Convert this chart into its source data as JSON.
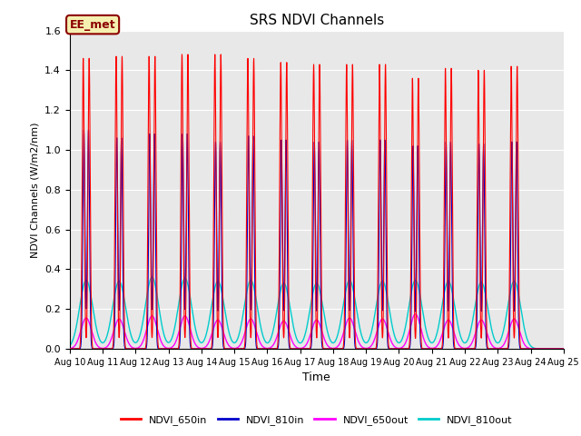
{
  "title": "SRS NDVI Channels",
  "xlabel": "Time",
  "ylabel": "NDVI Channels (W/m2/nm)",
  "ylim": [
    0.0,
    1.6
  ],
  "yticks": [
    0.0,
    0.2,
    0.4,
    0.6,
    0.8,
    1.0,
    1.2,
    1.4,
    1.6
  ],
  "x_tick_labels": [
    "Aug 10",
    "Aug 11",
    "Aug 12",
    "Aug 13",
    "Aug 14",
    "Aug 15",
    "Aug 16",
    "Aug 17",
    "Aug 18",
    "Aug 19",
    "Aug 20",
    "Aug 21",
    "Aug 22",
    "Aug 23",
    "Aug 24",
    "Aug 25"
  ],
  "background_color": "#e8e8e8",
  "annotation_text": "EE_met",
  "annotation_bg": "#f5f0b0",
  "annotation_border": "#8b0000",
  "line_colors": {
    "NDVI_650in": "#ff0000",
    "NDVI_810in": "#0000cc",
    "NDVI_650out": "#ff00ff",
    "NDVI_810out": "#00cccc"
  },
  "peak_650in": [
    1.46,
    1.47,
    1.47,
    1.48,
    1.48,
    1.46,
    1.44,
    1.43,
    1.43,
    1.43,
    1.36,
    1.41,
    1.4,
    1.42
  ],
  "peak_810in": [
    1.1,
    1.06,
    1.08,
    1.08,
    1.04,
    1.07,
    1.05,
    1.04,
    1.05,
    1.05,
    1.02,
    1.04,
    1.03,
    1.04
  ],
  "peak_650out": [
    0.155,
    0.15,
    0.165,
    0.165,
    0.145,
    0.15,
    0.14,
    0.145,
    0.155,
    0.15,
    0.175,
    0.145,
    0.145,
    0.15
  ],
  "peak_810out": [
    0.345,
    0.34,
    0.36,
    0.355,
    0.34,
    0.345,
    0.33,
    0.33,
    0.345,
    0.34,
    0.345,
    0.34,
    0.335,
    0.34
  ],
  "num_days": 15,
  "figsize": [
    6.4,
    4.8
  ],
  "dpi": 100
}
